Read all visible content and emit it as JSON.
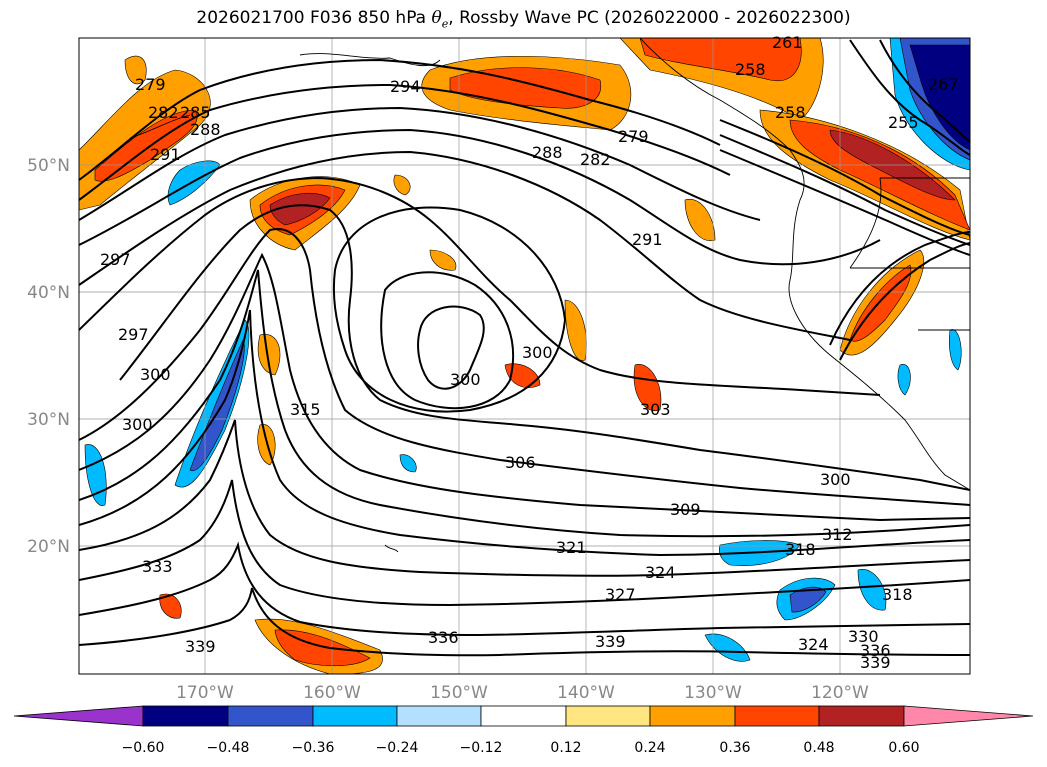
{
  "title": {
    "prefix": "2026021700 F036 850 hPa ",
    "symbol": "θ",
    "subscript": "e",
    "suffix": ", Rossby Wave PC (2026022000 - 2026022300)"
  },
  "axes": {
    "lon_labels": [
      "170°W",
      "160°W",
      "150°W",
      "140°W",
      "130°W",
      "120°W"
    ],
    "lat_labels": [
      "50°N",
      "40°N",
      "30°N",
      "20°N"
    ]
  },
  "colorbar": {
    "tick_labels": [
      "−0.60",
      "−0.48",
      "−0.36",
      "−0.24",
      "−0.12",
      "0.12",
      "0.24",
      "0.36",
      "0.48",
      "0.60"
    ],
    "colors": [
      "#9933cc",
      "#000080",
      "#3355cc",
      "#00bbff",
      "#b3e0ff",
      "#ffffff",
      "#ffe680",
      "#ffa000",
      "#ff4500",
      "#b22222",
      "#ff88aa"
    ]
  },
  "contour_labels": [
    "279",
    "282",
    "285",
    "288",
    "291",
    "294",
    "288",
    "282",
    "279",
    "261",
    "258",
    "258",
    "255",
    "267",
    "297",
    "297",
    "300",
    "300",
    "300",
    "300",
    "300",
    "303",
    "306",
    "309",
    "312",
    "315",
    "318",
    "318",
    "321",
    "324",
    "327",
    "324",
    "330",
    "333",
    "336",
    "336",
    "339",
    "339",
    "339",
    "291"
  ]
}
